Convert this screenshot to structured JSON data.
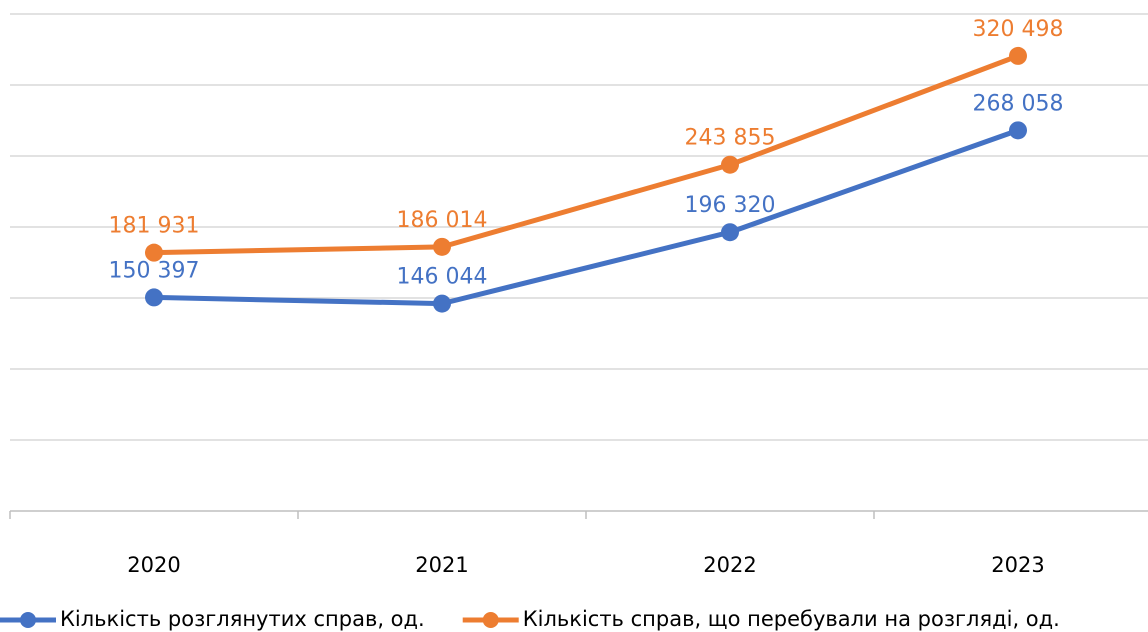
{
  "chart_data": {
    "type": "line",
    "categories": [
      "2020",
      "2021",
      "2022",
      "2023"
    ],
    "series": [
      {
        "name": "Кількість розглянутих справ, од.",
        "color": "#4472c4",
        "values": [
          150397,
          146044,
          196320,
          268058
        ],
        "value_labels": [
          "150 397",
          "146 044",
          "196 320",
          "268 058"
        ]
      },
      {
        "name": "Кількість справ, що перебували на розгляді, од.",
        "color": "#ed7d31",
        "values": [
          181931,
          186014,
          243855,
          320498
        ],
        "value_labels": [
          "181 931",
          "186 014",
          "243 855",
          "320 498"
        ]
      }
    ],
    "ylim": [
      0,
      350000
    ],
    "yticks": [
      0,
      50000,
      100000,
      150000,
      200000,
      250000,
      300000,
      350000
    ],
    "grid": true,
    "legend": "bottom"
  }
}
